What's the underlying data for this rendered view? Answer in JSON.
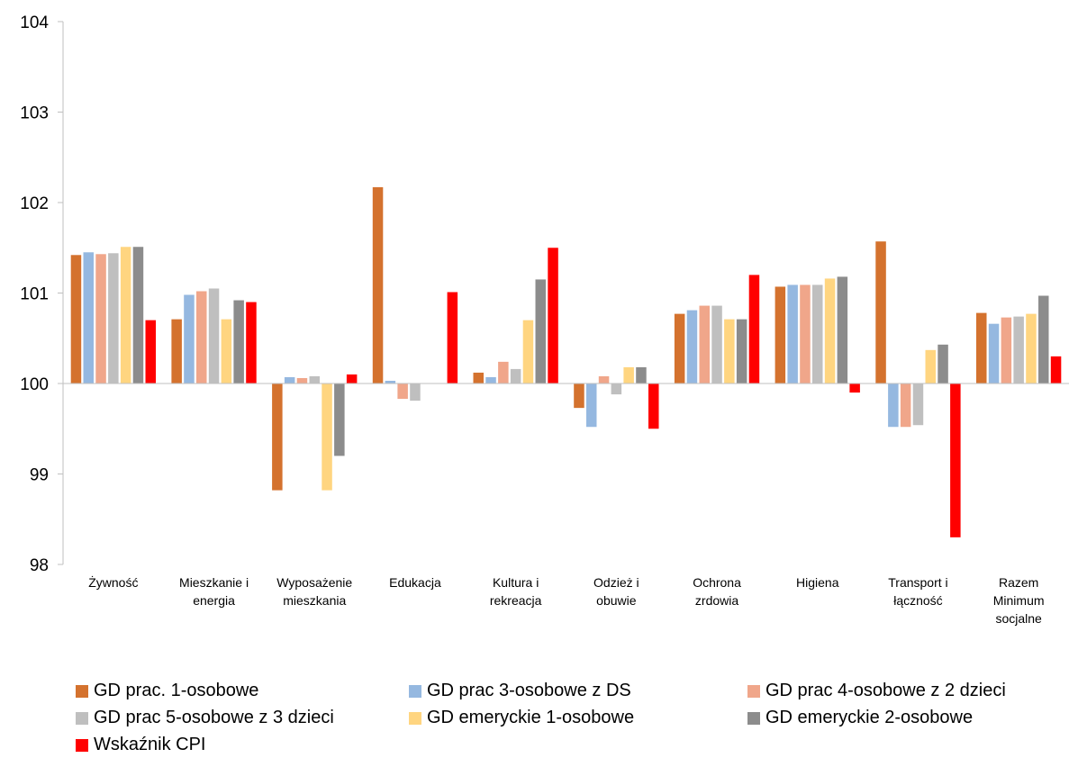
{
  "chart_data": {
    "type": "bar",
    "categories": [
      [
        "Żywność"
      ],
      [
        "Mieszkanie i",
        "energia"
      ],
      [
        "Wyposażenie",
        "mieszkania"
      ],
      [
        "Edukacja"
      ],
      [
        "Kultura i",
        "rekreacja"
      ],
      [
        "Odzież i",
        "obuwie"
      ],
      [
        "Ochrona",
        "zrdowia"
      ],
      [
        "Higiena"
      ],
      [
        "Transport i",
        "łączność"
      ],
      [
        "Razem",
        "Minimum",
        "socjalne"
      ]
    ],
    "series": [
      {
        "name": "GD prac. 1-osobowe",
        "color": "#D4722E",
        "values": [
          101.42,
          100.71,
          98.82,
          102.17,
          100.12,
          99.73,
          100.77,
          101.07,
          101.57,
          100.78
        ]
      },
      {
        "name": "GD prac 3-osobowe z DS",
        "color": "#95B8E0",
        "values": [
          101.45,
          100.98,
          100.07,
          100.03,
          100.07,
          99.52,
          100.81,
          101.09,
          99.52,
          100.66
        ]
      },
      {
        "name": "GD prac 4-osobowe z 2 dzieci",
        "color": "#F0A68A",
        "values": [
          101.43,
          101.02,
          100.06,
          99.83,
          100.24,
          100.08,
          100.86,
          101.09,
          99.52,
          100.73
        ]
      },
      {
        "name": "GD prac 5-osobowe z 3 dzieci",
        "color": "#BFBFBF",
        "values": [
          101.44,
          101.05,
          100.08,
          99.81,
          100.16,
          99.88,
          100.86,
          101.09,
          99.54,
          100.74
        ]
      },
      {
        "name": "GD emeryckie 1-osobowe",
        "color": "#FFD580",
        "values": [
          101.51,
          100.71,
          98.82,
          100.0,
          100.7,
          100.18,
          100.71,
          101.16,
          100.37,
          100.77
        ]
      },
      {
        "name": "GD emeryckie 2-osobowe",
        "color": "#8C8C8C",
        "values": [
          101.51,
          100.92,
          99.2,
          100.0,
          101.15,
          100.18,
          100.71,
          101.18,
          100.43,
          100.97
        ]
      },
      {
        "name": "Wskaźnik CPI",
        "color": "#FF0000",
        "values": [
          100.7,
          100.9,
          100.1,
          101.01,
          101.5,
          99.5,
          101.2,
          99.9,
          98.3,
          100.3
        ]
      }
    ],
    "yticks": [
      "98",
      "99",
      "100",
      "101",
      "102",
      "103",
      "104"
    ],
    "ylim": [
      98,
      104
    ],
    "baseline": 100,
    "grid": false,
    "legend_position": "bottom"
  }
}
